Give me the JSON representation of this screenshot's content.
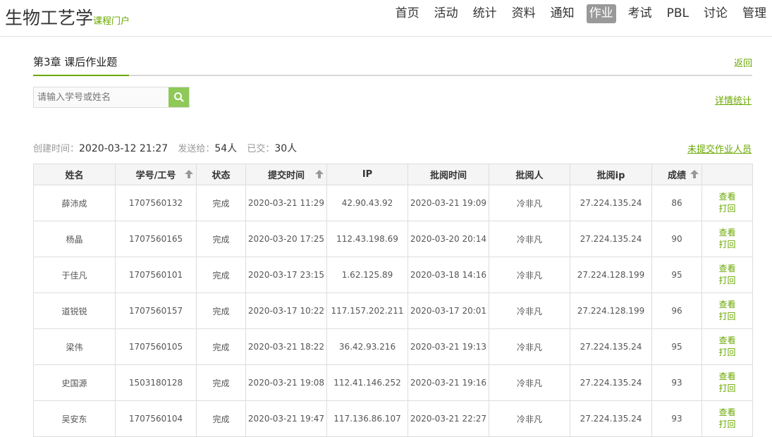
{
  "header": {
    "title": "生物工艺学",
    "subtitle": "课程门户",
    "nav": [
      {
        "label": "首页"
      },
      {
        "label": "活动"
      },
      {
        "label": "统计"
      },
      {
        "label": "资料"
      },
      {
        "label": "通知"
      },
      {
        "label": "作业",
        "active": true
      },
      {
        "label": "考试"
      },
      {
        "label": "PBL"
      },
      {
        "label": "讨论"
      },
      {
        "label": "管理"
      }
    ]
  },
  "page": {
    "title": "第3章 课后作业题",
    "back": "返回",
    "search_placeholder": "请输入学号或姓名",
    "detail_stats": "详情统计",
    "not_submitted": "未提交作业人员",
    "created_label": "创建时间：",
    "created": "2020-03-12 21:27",
    "sent_label": "发送给：",
    "sent": "54人",
    "submitted_label": "已交：",
    "submitted": "30人"
  },
  "colors": {
    "accent": "#6aa800",
    "search_button": "#8fc958"
  },
  "table": {
    "headers": [
      "姓名",
      "学号/工号",
      "状态",
      "提交时间",
      "IP",
      "批阅时间",
      "批阅人",
      "批阅ip",
      "成绩",
      ""
    ],
    "sortable": [
      false,
      true,
      false,
      true,
      false,
      false,
      false,
      false,
      true,
      false
    ],
    "view_label": "查看",
    "return_label": "打回",
    "rows": [
      [
        "薛沛成",
        "1707560132",
        "完成",
        "2020-03-21 11:29",
        "42.90.43.92",
        "2020-03-21 19:09",
        "冷非凡",
        "27.224.135.24",
        "86"
      ],
      [
        "杨晶",
        "1707560165",
        "完成",
        "2020-03-20 17:25",
        "112.43.198.69",
        "2020-03-20 20:14",
        "冷非凡",
        "27.224.135.24",
        "90"
      ],
      [
        "于佳凡",
        "1707560101",
        "完成",
        "2020-03-17 23:15",
        "1.62.125.89",
        "2020-03-18 14:16",
        "冷非凡",
        "27.224.128.199",
        "95"
      ],
      [
        "道锐锐",
        "1707560157",
        "完成",
        "2020-03-17 10:22",
        "117.157.202.211",
        "2020-03-17 20:01",
        "冷非凡",
        "27.224.128.199",
        "96"
      ],
      [
        "梁伟",
        "1707560105",
        "完成",
        "2020-03-21 18:22",
        "36.42.93.216",
        "2020-03-21 19:13",
        "冷非凡",
        "27.224.135.24",
        "95"
      ],
      [
        "史国源",
        "1503180128",
        "完成",
        "2020-03-21 19:08",
        "112.41.146.252",
        "2020-03-21 19:16",
        "冷非凡",
        "27.224.135.24",
        "93"
      ],
      [
        "吴安东",
        "1707560104",
        "完成",
        "2020-03-21 19:47",
        "117.136.86.107",
        "2020-03-21 22:27",
        "冷非凡",
        "27.224.135.24",
        "93"
      ]
    ]
  }
}
